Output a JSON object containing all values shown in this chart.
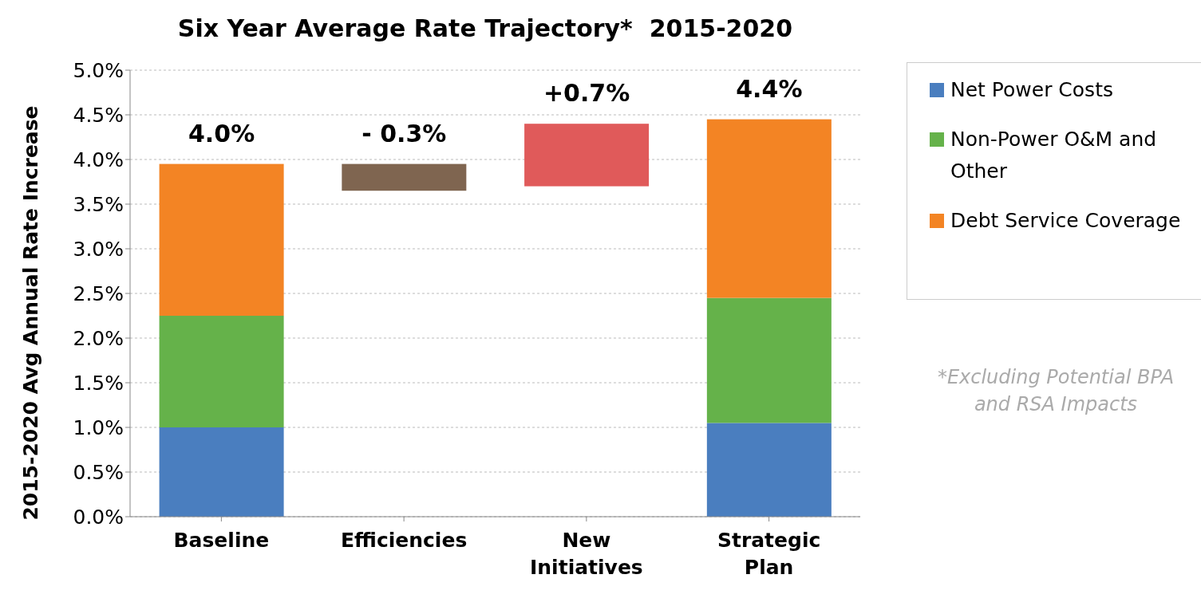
{
  "chart_data": {
    "type": "bar",
    "title": "Six Year Average Rate Trajectory*  2015-2020",
    "ylabel": "2015-2020 Avg Annual Rate Increase",
    "categories": [
      "Baseline",
      "Efficiencies",
      "New Initiatives",
      "Strategic Plan"
    ],
    "stacked": true,
    "series": [
      {
        "name": "Net Power Costs",
        "color": "#4a7ebf",
        "values": [
          1.0,
          null,
          null,
          1.05
        ]
      },
      {
        "name": "Non-Power O&M and Other",
        "color": "#65b24a",
        "values": [
          1.25,
          null,
          null,
          1.4
        ]
      },
      {
        "name": "Debt Service Coverage",
        "color": "#f38424",
        "values": [
          1.7,
          null,
          null,
          2.0
        ]
      },
      {
        "colors": [
          null,
          "#7f6550",
          "#e05a5a",
          null
        ],
        "values": [
          null,
          -0.3,
          0.7,
          null
        ],
        "base": [
          null,
          3.95,
          3.7,
          null
        ],
        "value_labels": [
          null,
          "- 0.3%",
          "+0.7%",
          null
        ]
      }
    ],
    "totals": [
      "4.0%",
      null,
      null,
      "4.4%"
    ],
    "ylim": [
      0,
      5
    ],
    "yticks": [
      {
        "value": 0,
        "label": "0.0%"
      },
      {
        "value": 0.5,
        "label": "0.5%"
      },
      {
        "value": 1,
        "label": "1.0%"
      },
      {
        "value": 1.5,
        "label": "1.5%"
      },
      {
        "value": 2,
        "label": "2.0%"
      },
      {
        "value": 2.5,
        "label": "2.5%"
      },
      {
        "value": 3,
        "label": "3.0%"
      },
      {
        "value": 3.5,
        "label": "3.5%"
      },
      {
        "value": 4,
        "label": "4.0%"
      },
      {
        "value": 4.5,
        "label": "4.5%"
      },
      {
        "value": 5,
        "label": "5.0%"
      }
    ],
    "grid": "y",
    "legend": "top right",
    "annotations": [
      "*Excluding Potential BPA and RSA Impacts"
    ]
  }
}
